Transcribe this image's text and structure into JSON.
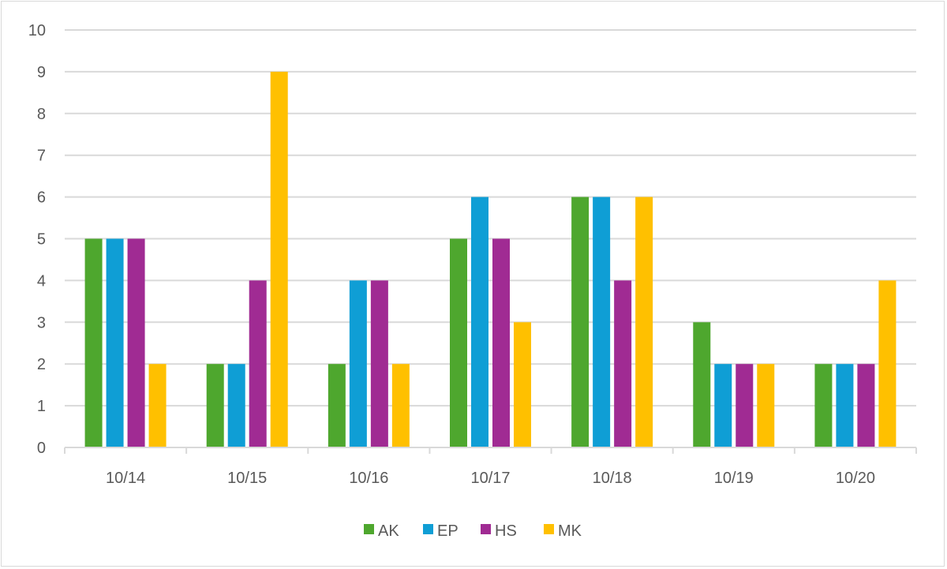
{
  "chart_data": {
    "type": "bar",
    "title": "",
    "xlabel": "",
    "ylabel": "",
    "categories": [
      "10/14",
      "10/15",
      "10/16",
      "10/17",
      "10/18",
      "10/19",
      "10/20"
    ],
    "series": [
      {
        "name": "AK",
        "color": "#4ea72e",
        "values": [
          5,
          2,
          2,
          5,
          6,
          3,
          2
        ]
      },
      {
        "name": "EP",
        "color": "#0f9ed5",
        "values": [
          5,
          2,
          4,
          6,
          6,
          2,
          2
        ]
      },
      {
        "name": "HS",
        "color": "#a02b93",
        "values": [
          5,
          4,
          4,
          5,
          4,
          2,
          2
        ]
      },
      {
        "name": "MK",
        "color": "#ffc000",
        "values": [
          2,
          9,
          2,
          3,
          6,
          2,
          4
        ]
      }
    ],
    "ylim": [
      0,
      10
    ],
    "yticks": [
      0,
      1,
      2,
      3,
      4,
      5,
      6,
      7,
      8,
      9,
      10
    ],
    "grid": true,
    "legend": "bottom"
  }
}
